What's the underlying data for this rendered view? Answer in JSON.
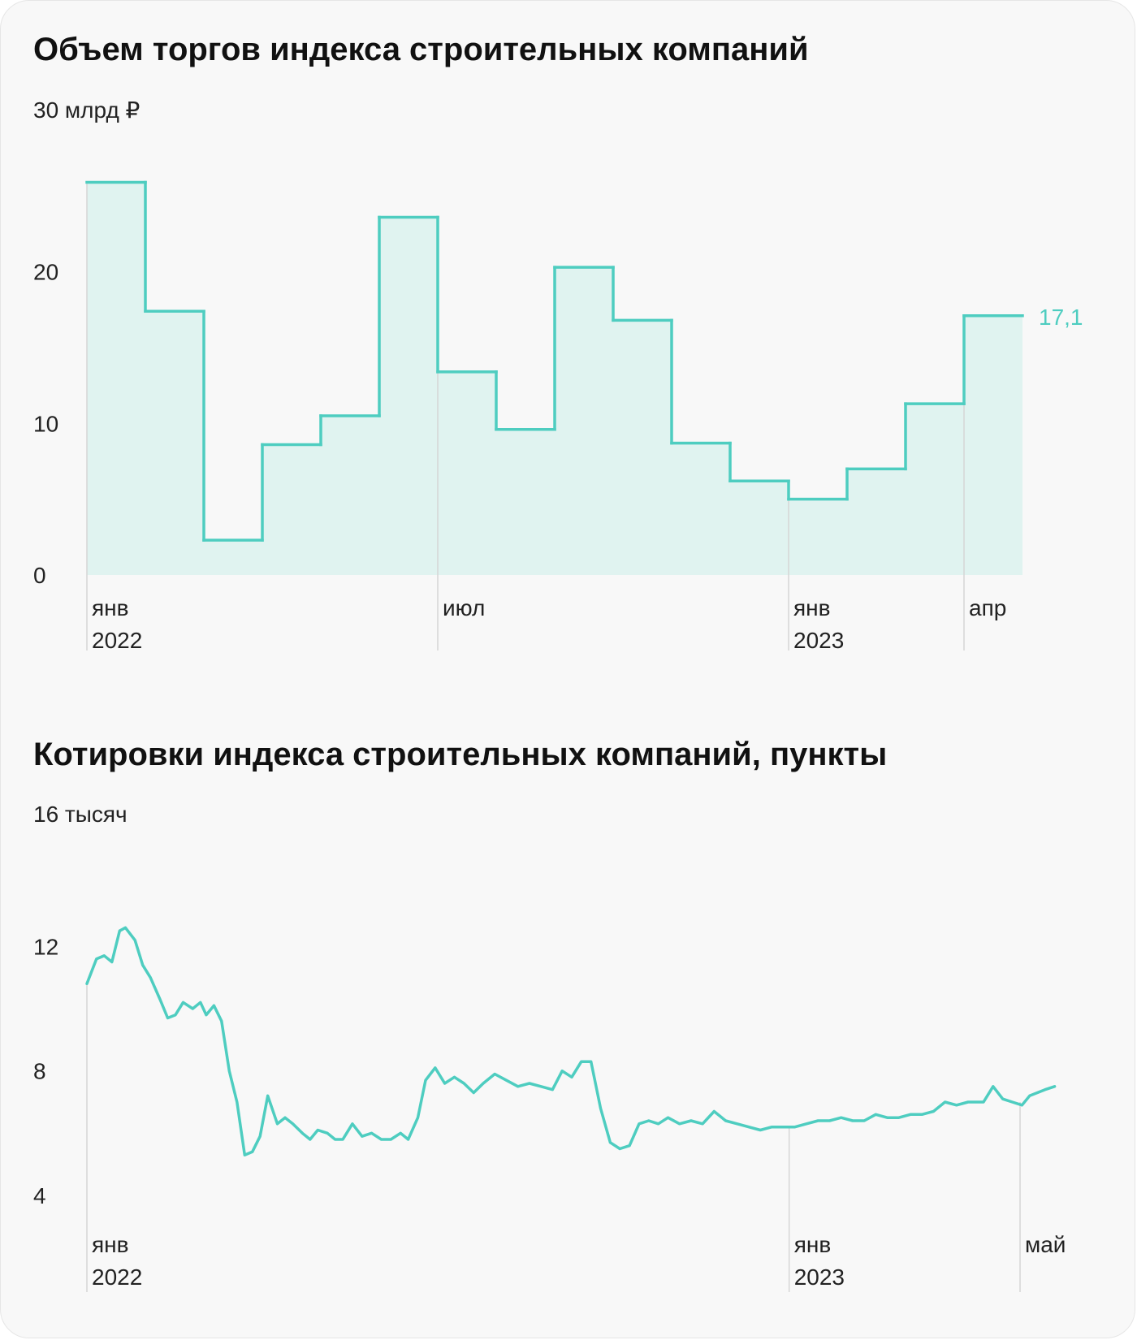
{
  "charts": [
    {
      "title": "Объем торгов индекса строительных компаний",
      "unit_label": "30 млрд ₽",
      "y_tick_labels": [
        "20",
        "10",
        "0"
      ],
      "x_labels": [
        {
          "line1": "янв",
          "line2": "2022"
        },
        {
          "line1": "июл",
          "line2": ""
        },
        {
          "line1": "янв",
          "line2": "2023"
        },
        {
          "line1": "апр",
          "line2": ""
        }
      ],
      "last_value_label": "17,1"
    },
    {
      "title": "Котировки индекса строительных компаний, пункты",
      "unit_label": "16 тысяч",
      "y_tick_labels": [
        "12",
        "8",
        "4"
      ],
      "x_labels": [
        {
          "line1": "янв",
          "line2": "2022"
        },
        {
          "line1": "янв",
          "line2": "2023"
        },
        {
          "line1": "май",
          "line2": ""
        }
      ]
    }
  ],
  "colors": {
    "accent": "#4ecdc0",
    "fill": "#e0f3f0",
    "text": "#222222",
    "grid": "#d6d6d6"
  },
  "chart_data": [
    {
      "type": "area",
      "title": "Объем торгов индекса строительных компаний",
      "ylabel": "30 млрд ₽",
      "step": true,
      "ylim": [
        0,
        30
      ],
      "yticks": [
        0,
        10,
        20
      ],
      "categories": [
        "янв 2022",
        "фев 2022",
        "мар 2022",
        "апр 2022",
        "май 2022",
        "июн 2022",
        "июл 2022",
        "авг 2022",
        "сен 2022",
        "окт 2022",
        "ноя 2022",
        "дек 2022",
        "янв 2023",
        "фев 2023",
        "мар 2023",
        "апр 2023"
      ],
      "values": [
        25.9,
        17.4,
        2.3,
        8.6,
        10.5,
        23.6,
        13.4,
        9.6,
        20.3,
        16.8,
        8.7,
        6.2,
        5.0,
        7.0,
        11.3,
        17.1
      ],
      "x_ticks": [
        "янв 2022",
        "июл",
        "янв 2023",
        "апр"
      ]
    },
    {
      "type": "line",
      "title": "Котировки индекса строительных компаний, пункты",
      "ylabel": "16 тысяч",
      "ylim": [
        4,
        16
      ],
      "yticks": [
        4,
        8,
        12
      ],
      "x_range": [
        "2022-01-01",
        "2023-05-20"
      ],
      "x_ticks": [
        {
          "date": "2022-01-01",
          "label": "янв 2022"
        },
        {
          "date": "2023-01-01",
          "label": "янв 2023"
        },
        {
          "date": "2023-05-01",
          "label": "май"
        }
      ],
      "x": [
        "2022-01-01",
        "2022-01-06",
        "2022-01-10",
        "2022-01-14",
        "2022-01-18",
        "2022-01-21",
        "2022-01-26",
        "2022-01-30",
        "2022-02-03",
        "2022-02-08",
        "2022-02-12",
        "2022-02-16",
        "2022-02-20",
        "2022-02-25",
        "2022-03-01",
        "2022-03-04",
        "2022-03-08",
        "2022-03-12",
        "2022-03-16",
        "2022-03-20",
        "2022-03-24",
        "2022-03-28",
        "2022-04-01",
        "2022-04-05",
        "2022-04-10",
        "2022-04-14",
        "2022-04-18",
        "2022-04-23",
        "2022-04-27",
        "2022-05-01",
        "2022-05-06",
        "2022-05-10",
        "2022-05-14",
        "2022-05-19",
        "2022-05-24",
        "2022-05-29",
        "2022-06-03",
        "2022-06-08",
        "2022-06-13",
        "2022-06-17",
        "2022-06-22",
        "2022-06-26",
        "2022-07-01",
        "2022-07-06",
        "2022-07-11",
        "2022-07-16",
        "2022-07-21",
        "2022-07-26",
        "2022-08-01",
        "2022-08-07",
        "2022-08-13",
        "2022-08-19",
        "2022-08-25",
        "2022-08-31",
        "2022-09-05",
        "2022-09-10",
        "2022-09-15",
        "2022-09-20",
        "2022-09-25",
        "2022-09-30",
        "2022-10-05",
        "2022-10-10",
        "2022-10-15",
        "2022-10-20",
        "2022-10-25",
        "2022-10-30",
        "2022-11-05",
        "2022-11-11",
        "2022-11-17",
        "2022-11-23",
        "2022-11-29",
        "2022-12-05",
        "2022-12-11",
        "2022-12-17",
        "2022-12-23",
        "2022-12-29",
        "2023-01-04",
        "2023-01-10",
        "2023-01-16",
        "2023-01-22",
        "2023-01-28",
        "2023-02-03",
        "2023-02-09",
        "2023-02-15",
        "2023-02-21",
        "2023-02-27",
        "2023-03-05",
        "2023-03-11",
        "2023-03-17",
        "2023-03-23",
        "2023-03-29",
        "2023-04-04",
        "2023-04-08",
        "2023-04-12",
        "2023-04-17",
        "2023-04-22",
        "2023-04-27",
        "2023-05-02",
        "2023-05-06",
        "2023-05-10",
        "2023-05-14",
        "2023-05-19"
      ],
      "y": [
        10.8,
        11.6,
        11.7,
        11.5,
        12.5,
        12.6,
        12.2,
        11.4,
        11.0,
        10.3,
        9.7,
        9.8,
        10.2,
        10.0,
        10.2,
        9.8,
        10.1,
        9.6,
        8.0,
        7.0,
        5.3,
        5.4,
        5.9,
        7.2,
        6.3,
        6.5,
        6.3,
        6.0,
        5.8,
        6.1,
        6.0,
        5.8,
        5.8,
        6.3,
        5.9,
        6.0,
        5.8,
        5.8,
        6.0,
        5.8,
        6.5,
        7.7,
        8.1,
        7.6,
        7.8,
        7.6,
        7.3,
        7.6,
        7.9,
        7.7,
        7.5,
        7.6,
        7.5,
        7.4,
        8.0,
        7.8,
        8.3,
        8.3,
        6.8,
        5.7,
        5.5,
        5.6,
        6.3,
        6.4,
        6.3,
        6.5,
        6.3,
        6.4,
        6.3,
        6.7,
        6.4,
        6.3,
        6.2,
        6.1,
        6.2,
        6.2,
        6.2,
        6.3,
        6.4,
        6.4,
        6.5,
        6.4,
        6.4,
        6.6,
        6.5,
        6.5,
        6.6,
        6.6,
        6.7,
        7.0,
        6.9,
        7.0,
        7.0,
        7.0,
        7.5,
        7.1,
        7.0,
        6.9,
        7.2,
        7.3,
        7.4,
        7.5
      ]
    }
  ]
}
